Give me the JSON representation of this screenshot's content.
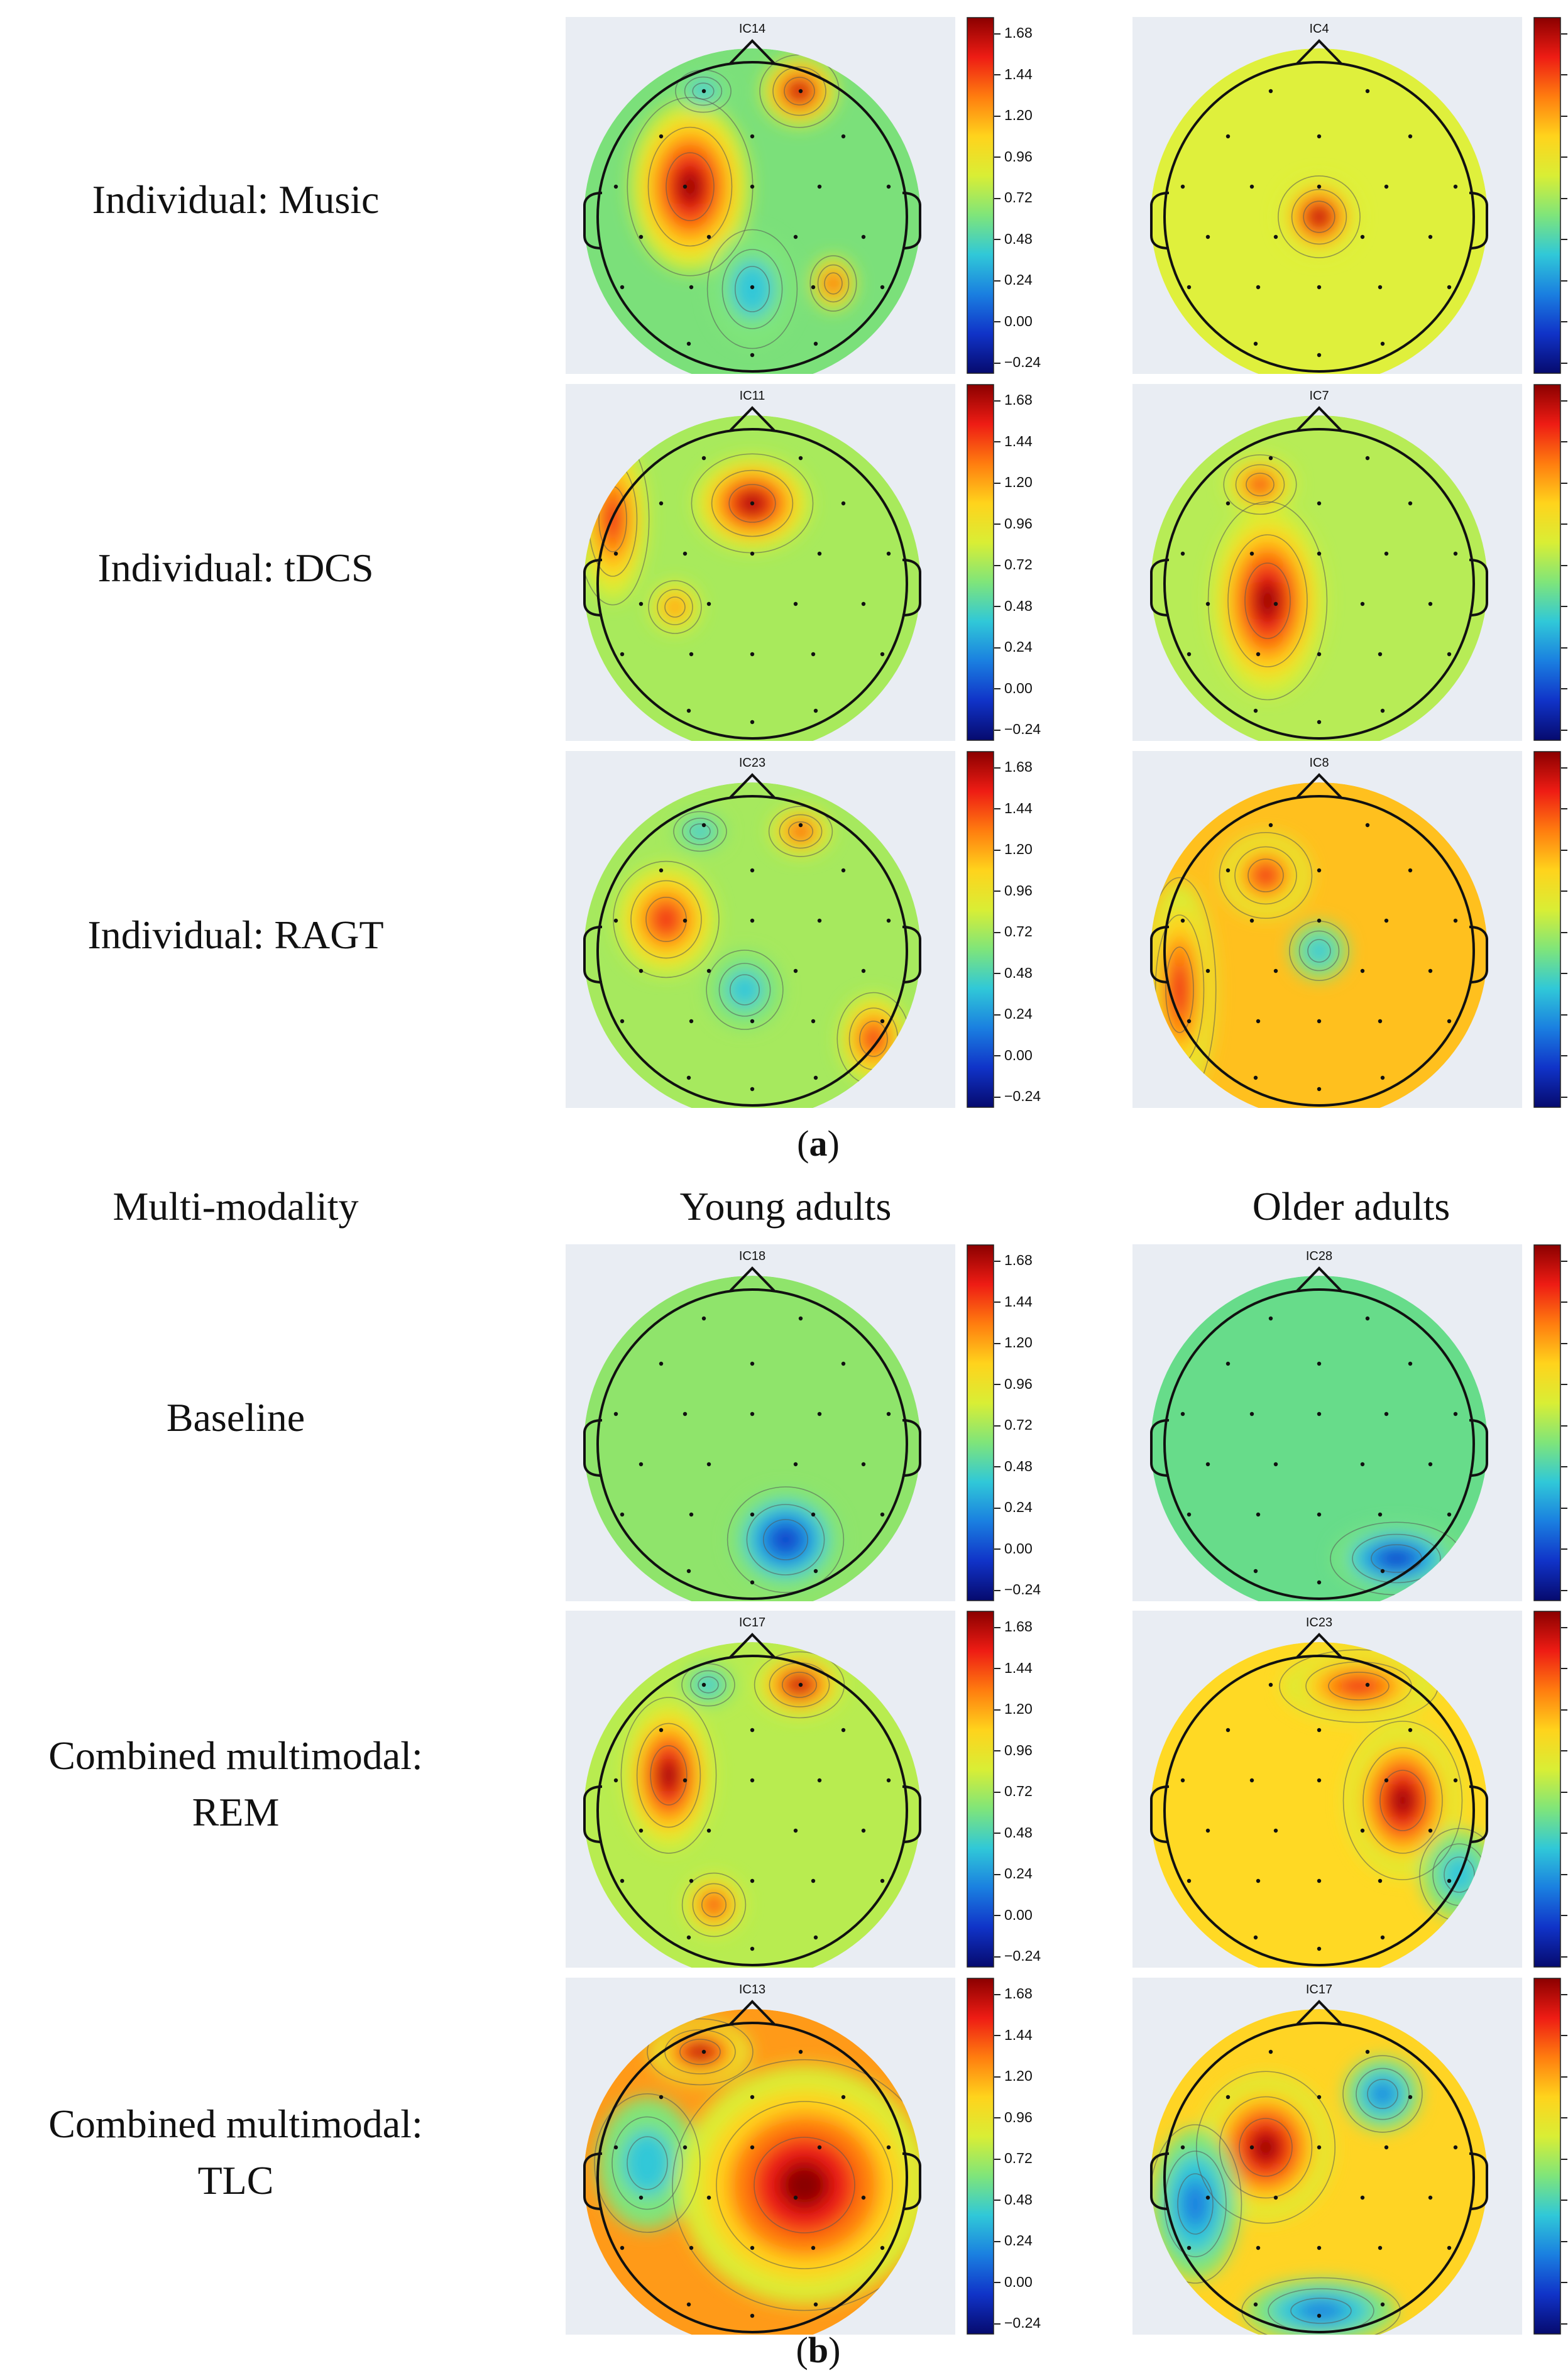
{
  "row_labels_a": [
    {
      "line1": "Individual: Music"
    },
    {
      "line1": "Individual: tDCS"
    },
    {
      "line1": "Individual: RAGT"
    }
  ],
  "row_labels_b": [
    {
      "line1": "Baseline",
      "line2": ""
    },
    {
      "line1": "Combined multimodal:",
      "line2": "REM"
    },
    {
      "line1": "Combined multimodal:",
      "line2": "TLC"
    }
  ],
  "column_headers": {
    "rowtitle": "Multi-modality",
    "young": "Young adults",
    "older": "Older adults"
  },
  "subfigure_labels": {
    "a": "a",
    "b": "b"
  },
  "colorbar_ticks": [
    "1.68",
    "1.44",
    "1.20",
    "0.96",
    "0.72",
    "0.48",
    "0.24",
    "0.00",
    "−0.24"
  ],
  "colorbar_gradient": [
    "#8b0000",
    "#ee1c14",
    "#ff7d0f",
    "#ffd31c",
    "#d9ee35",
    "#7fe57a",
    "#30c8d8",
    "#1a7fe0",
    "#1033c8",
    "#060a6e"
  ],
  "colors": {
    "background": "#e9edf3",
    "head_outline": "#111111"
  },
  "maps": [
    {
      "id": "map-a1-young",
      "ic": "IC14",
      "base": "#7be07a",
      "blobs": [
        {
          "type": "pos",
          "level": 0.95
        },
        {
          "type": "pos",
          "level": 0.9
        },
        {
          "type": "neg",
          "level": 0.6
        },
        {
          "type": "neg",
          "level": 0.5
        },
        {
          "type": "pos",
          "level": 0.7
        }
      ]
    },
    {
      "id": "map-a1-older",
      "ic": "IC4",
      "base": "#dff03c",
      "blobs": [
        {
          "type": "pos",
          "level": 1.0
        }
      ]
    },
    {
      "id": "map-a2-young",
      "ic": "IC11",
      "base": "#a8ea5c",
      "blobs": [
        {
          "type": "pos",
          "level": 1.0
        },
        {
          "type": "pos",
          "level": 0.8
        },
        {
          "type": "pos",
          "level": 0.6
        }
      ]
    },
    {
      "id": "map-a2-older",
      "ic": "IC7",
      "base": "#b7ec56",
      "blobs": [
        {
          "type": "pos",
          "level": 1.0
        },
        {
          "type": "pos",
          "level": 0.8
        }
      ]
    },
    {
      "id": "map-a3-young",
      "ic": "IC23",
      "base": "#a6e95e",
      "blobs": [
        {
          "type": "pos",
          "level": 0.85
        },
        {
          "type": "pos",
          "level": 0.8
        },
        {
          "type": "neg",
          "level": 0.5
        },
        {
          "type": "neg",
          "level": 0.5
        },
        {
          "type": "pos",
          "level": 0.7
        }
      ]
    },
    {
      "id": "map-a3-older",
      "ic": "IC8",
      "base": "#ffc01e",
      "blobs": [
        {
          "type": "neg",
          "level": 0.6
        },
        {
          "type": "pos",
          "level": 0.8
        },
        {
          "type": "pos",
          "level": 0.8
        }
      ]
    },
    {
      "id": "map-b1-young",
      "ic": "IC18",
      "base": "#8fe46b",
      "blobs": [
        {
          "type": "neg",
          "level": 1.0
        }
      ]
    },
    {
      "id": "map-b1-older",
      "ic": "IC28",
      "base": "#67dc8a",
      "blobs": [
        {
          "type": "neg",
          "level": 0.9
        }
      ]
    },
    {
      "id": "map-b2-young",
      "ic": "IC17",
      "base": "#b8ec50",
      "blobs": [
        {
          "type": "pos",
          "level": 0.95
        },
        {
          "type": "pos",
          "level": 0.95
        },
        {
          "type": "neg",
          "level": 0.5
        },
        {
          "type": "pos",
          "level": 0.8
        }
      ]
    },
    {
      "id": "map-b2-older",
      "ic": "IC23",
      "base": "#ffd924",
      "blobs": [
        {
          "type": "pos",
          "level": 0.95
        },
        {
          "type": "pos",
          "level": 0.8
        },
        {
          "type": "neg",
          "level": 0.6
        }
      ]
    },
    {
      "id": "map-b3-young",
      "ic": "IC13",
      "base": "#ff9a18",
      "blobs": [
        {
          "type": "neg",
          "level": 0.5
        },
        {
          "type": "pos",
          "level": 0.95
        },
        {
          "type": "pos",
          "level": 0.95
        }
      ]
    },
    {
      "id": "map-b3-older",
      "ic": "IC17",
      "base": "#ffd424",
      "blobs": [
        {
          "type": "pos",
          "level": 1.0
        },
        {
          "type": "neg",
          "level": 0.7
        },
        {
          "type": "neg",
          "level": 0.8
        },
        {
          "type": "neg",
          "level": 0.7
        }
      ]
    }
  ]
}
